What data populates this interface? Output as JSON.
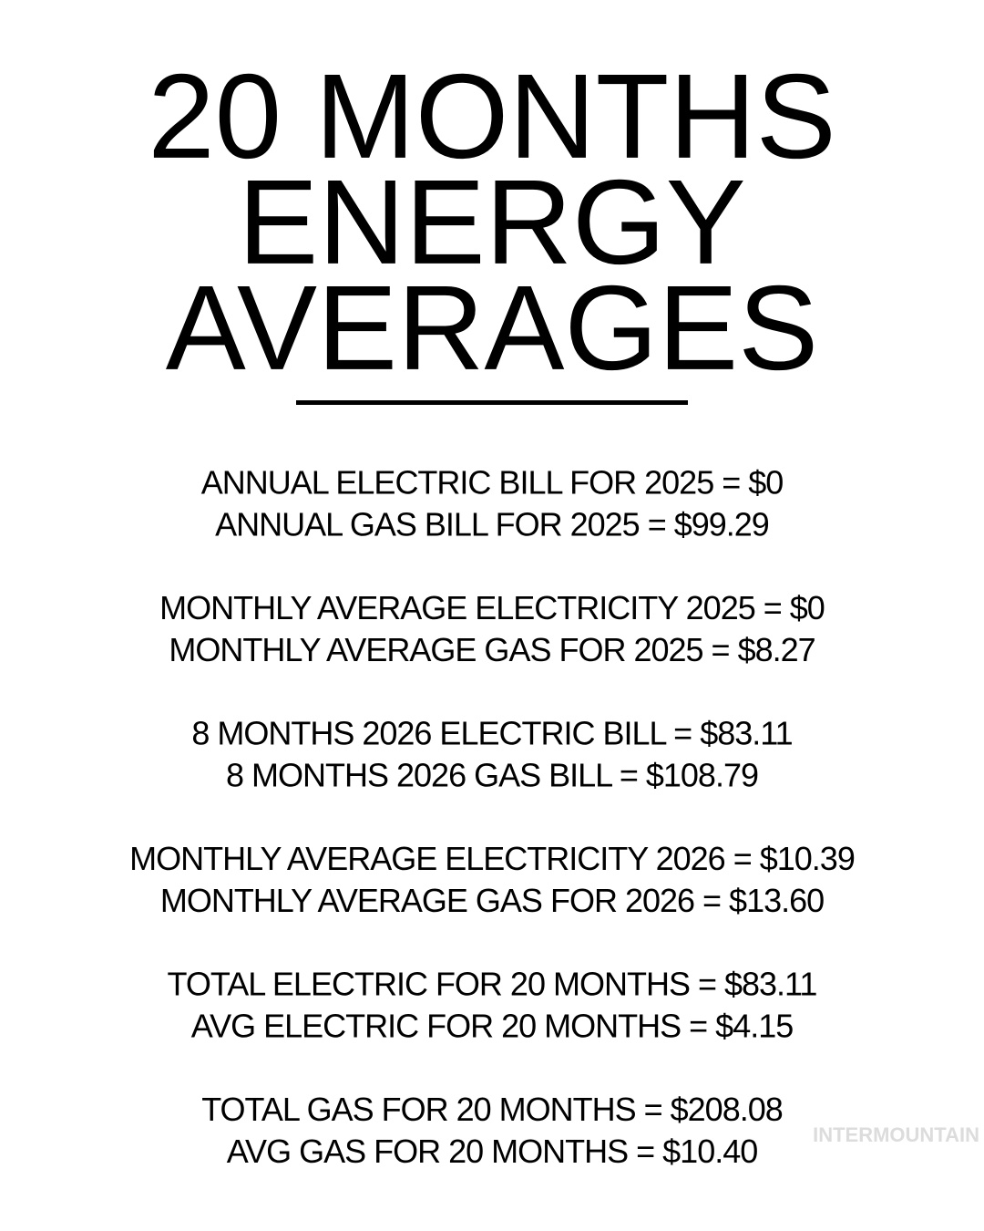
{
  "title_lines": [
    "20 MONTHS",
    "ENERGY",
    "AVERAGES"
  ],
  "groups": [
    [
      "ANNUAL ELECTRIC BILL FOR 2025 = $0",
      "ANNUAL GAS BILL FOR 2025 = $99.29"
    ],
    [
      "MONTHLY AVERAGE ELECTRICITY 2025 = $0",
      "MONTHLY AVERAGE GAS FOR 2025 = $8.27"
    ],
    [
      "8 MONTHS 2026 ELECTRIC BILL = $83.11",
      "8 MONTHS 2026 GAS BILL = $108.79"
    ],
    [
      "MONTHLY AVERAGE ELECTRICITY 2026 = $10.39",
      "MONTHLY AVERAGE GAS FOR 2026 = $13.60"
    ],
    [
      "TOTAL ELECTRIC FOR 20 MONTHS = $83.11",
      "AVG ELECTRIC FOR 20 MONTHS = $4.15"
    ],
    [
      "TOTAL GAS FOR 20 MONTHS = $208.08",
      "AVG GAS FOR 20 MONTHS = $10.40"
    ]
  ],
  "watermark": "INTERMOUNTAIN"
}
